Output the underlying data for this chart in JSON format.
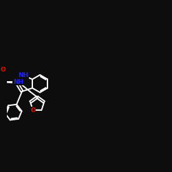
{
  "bg_color": "#0d0d0d",
  "bond_color": "#ffffff",
  "N_color": "#2222ff",
  "O_color": "#dd1100",
  "lw": 1.4,
  "fs": 6.5,
  "xlim": [
    0,
    14
  ],
  "ylim": [
    0,
    10
  ]
}
